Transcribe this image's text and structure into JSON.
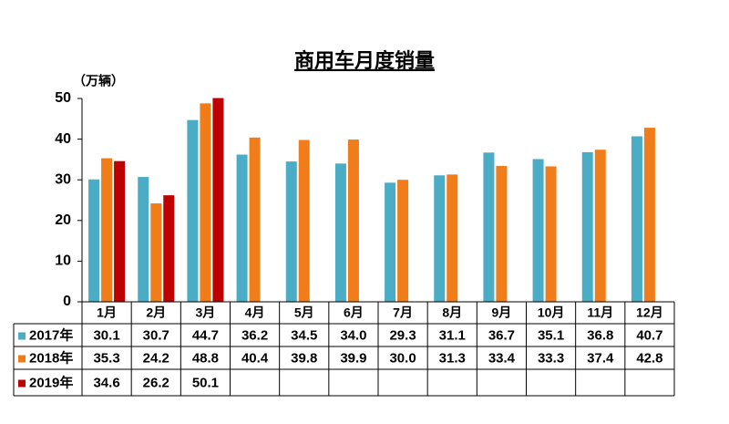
{
  "chart_data": {
    "type": "bar",
    "title": "商用车月度销量",
    "y_unit": "（万辆）",
    "categories": [
      "1月",
      "2月",
      "3月",
      "4月",
      "5月",
      "6月",
      "7月",
      "8月",
      "9月",
      "10月",
      "11月",
      "12月"
    ],
    "series": [
      {
        "name": "2017年",
        "color": "#4bacc6",
        "values": [
          30.1,
          30.7,
          44.7,
          36.2,
          34.5,
          34.0,
          29.3,
          31.1,
          36.7,
          35.1,
          36.8,
          40.7
        ],
        "value_labels": [
          "30.1",
          "30.7",
          "44.7",
          "36.2",
          "34.5",
          "34.0",
          "29.3",
          "31.1",
          "36.7",
          "35.1",
          "36.8",
          "40.7"
        ]
      },
      {
        "name": "2018年",
        "color": "#f07c1a",
        "values": [
          35.3,
          24.2,
          48.8,
          40.4,
          39.8,
          39.9,
          30.0,
          31.3,
          33.4,
          33.3,
          37.4,
          42.8
        ],
        "value_labels": [
          "35.3",
          "24.2",
          "48.8",
          "40.4",
          "39.8",
          "39.9",
          "30.0",
          "31.3",
          "33.4",
          "33.3",
          "37.4",
          "42.8"
        ]
      },
      {
        "name": "2019年",
        "color": "#c00000",
        "values": [
          34.6,
          26.2,
          50.1,
          null,
          null,
          null,
          null,
          null,
          null,
          null,
          null,
          null
        ],
        "value_labels": [
          "34.6",
          "26.2",
          "50.1",
          null,
          null,
          null,
          null,
          null,
          null,
          null,
          null,
          null
        ]
      }
    ],
    "ylim": [
      0,
      50
    ],
    "yticks": [
      0,
      10,
      20,
      30,
      40,
      50
    ],
    "grid": false
  }
}
